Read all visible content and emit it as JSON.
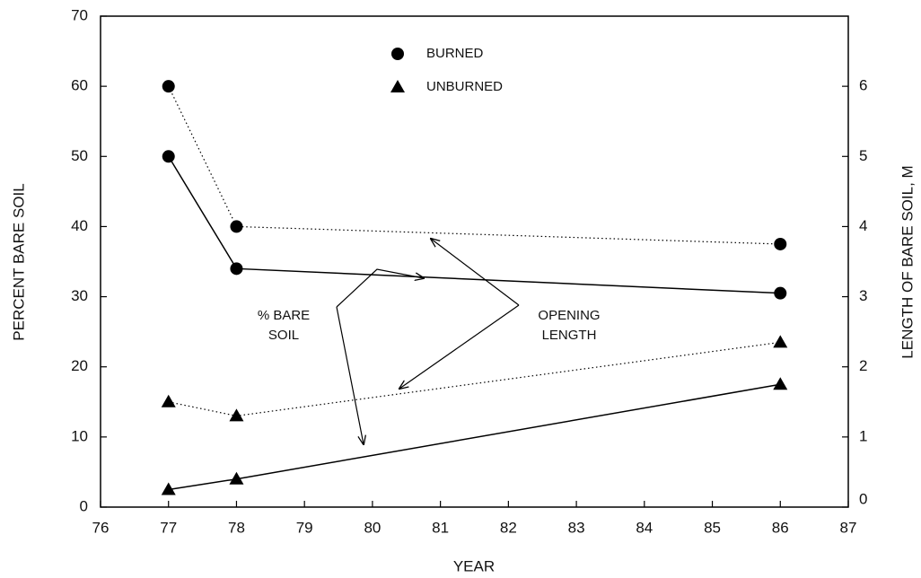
{
  "chart_data": {
    "type": "line",
    "x_label": "YEAR",
    "y_label": "PERCENT BARE SOIL",
    "y2_label": "LENGTH OF BARE SOIL, M",
    "x": [
      77,
      78,
      86
    ],
    "series": [
      {
        "marker": "circle",
        "style": "solid",
        "color": "#000000",
        "values": [
          50,
          34,
          30.5
        ]
      },
      {
        "marker": "circle",
        "style": "dotted",
        "color": "#000000",
        "axis": "y2",
        "values": [
          6.0,
          4.0,
          3.75
        ]
      },
      {
        "marker": "triangle",
        "style": "solid",
        "color": "#000000",
        "values": [
          2.5,
          4,
          17.5
        ]
      },
      {
        "marker": "triangle",
        "style": "dotted",
        "color": "#000000",
        "axis": "y2",
        "values": [
          1.5,
          1.3,
          2.35
        ]
      }
    ],
    "legend": [
      {
        "name": "BURNED",
        "marker": "circle"
      },
      {
        "name": "UNBURNED",
        "marker": "triangle"
      }
    ],
    "annotations": [
      [
        "% BARE",
        "SOIL"
      ],
      [
        "OPENING",
        "LENGTH"
      ]
    ],
    "xlim": [
      76,
      87
    ],
    "xticks": [
      76,
      77,
      78,
      79,
      80,
      81,
      82,
      83,
      84,
      85,
      86,
      87
    ],
    "ylim": [
      0,
      70
    ],
    "yticks": [
      0,
      10,
      20,
      30,
      40,
      50,
      60,
      70
    ],
    "y2lim": [
      0,
      7
    ],
    "y2ticks": [
      0,
      1,
      2,
      3,
      4,
      5,
      6
    ]
  }
}
